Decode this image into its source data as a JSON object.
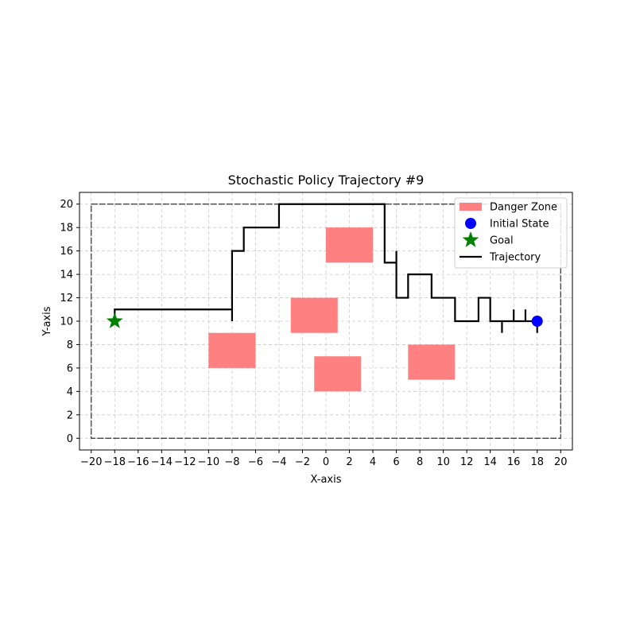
{
  "chart_data": {
    "type": "scatter",
    "title": "Stochastic Policy Trajectory #9",
    "xlabel": "X-axis",
    "ylabel": "Y-axis",
    "xlim": [
      -21,
      21
    ],
    "ylim": [
      -1,
      21
    ],
    "xticks": [
      -20,
      -18,
      -16,
      -14,
      -12,
      -10,
      -8,
      -6,
      -4,
      -2,
      0,
      2,
      4,
      6,
      8,
      10,
      12,
      14,
      16,
      18,
      20
    ],
    "yticks": [
      0,
      2,
      4,
      6,
      8,
      10,
      12,
      14,
      16,
      18,
      20
    ],
    "grid": true,
    "legend_position": "top-right",
    "boundary": {
      "x": [
        -20,
        20
      ],
      "y": [
        0,
        20
      ]
    },
    "danger_zones": [
      {
        "x": [
          -10,
          -6
        ],
        "y": [
          6,
          9
        ]
      },
      {
        "x": [
          -3,
          1
        ],
        "y": [
          9,
          12
        ]
      },
      {
        "x": [
          0,
          4
        ],
        "y": [
          15,
          18
        ]
      },
      {
        "x": [
          -1,
          3
        ],
        "y": [
          4,
          7
        ]
      },
      {
        "x": [
          7,
          11
        ],
        "y": [
          5,
          8
        ]
      }
    ],
    "initial_state": {
      "x": 18,
      "y": 10
    },
    "goal": {
      "x": -18,
      "y": 10
    },
    "trajectory": {
      "x": [
        18,
        18,
        18,
        17,
        17,
        17,
        16,
        16,
        16,
        15,
        15,
        15,
        14,
        14,
        13,
        13,
        13,
        11,
        11,
        9,
        9,
        7,
        7,
        6,
        6,
        6,
        5,
        5,
        5,
        -4,
        -4,
        -7,
        -7,
        -8,
        -8,
        -8,
        -18,
        -18
      ],
      "y": [
        10,
        9,
        10,
        10,
        11,
        10,
        10,
        11,
        10,
        10,
        9,
        10,
        10,
        12,
        12,
        10,
        10,
        10,
        12,
        12,
        14,
        14,
        12,
        12,
        16,
        15,
        15,
        20,
        20,
        20,
        18,
        18,
        16,
        16,
        10,
        11,
        11,
        10
      ]
    },
    "legend": [
      {
        "label": "Danger Zone",
        "kind": "patch"
      },
      {
        "label": "Initial State",
        "kind": "circle"
      },
      {
        "label": "Goal",
        "kind": "star"
      },
      {
        "label": "Trajectory",
        "kind": "line"
      }
    ],
    "colors": {
      "danger": "#ff8080",
      "initial": "#0000ff",
      "goal": "#008000",
      "trajectory": "#000000",
      "grid": "#cccccc",
      "boundary": "#000000"
    }
  }
}
